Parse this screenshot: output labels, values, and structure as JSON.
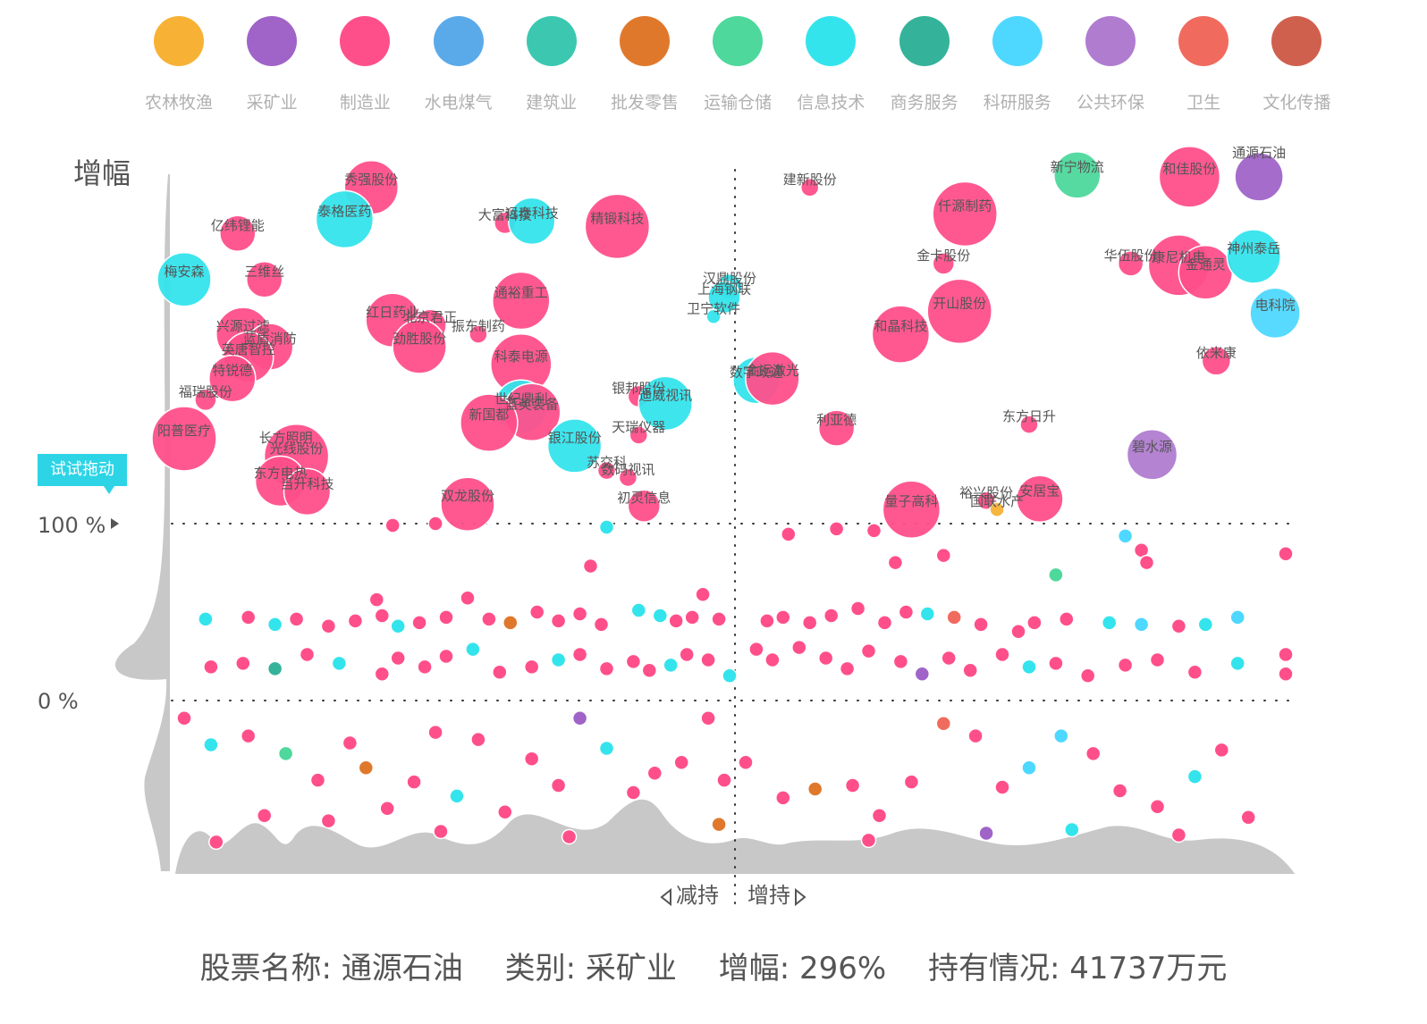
{
  "legend": {
    "items": [
      {
        "label": "农林牧渔",
        "color": "#f7b236"
      },
      {
        "label": "采矿业",
        "color": "#a064c8"
      },
      {
        "label": "制造业",
        "color": "#ff4f8b"
      },
      {
        "label": "水电煤气",
        "color": "#5aaaea"
      },
      {
        "label": "建筑业",
        "color": "#3cc8b0"
      },
      {
        "label": "批发零售",
        "color": "#e0782c"
      },
      {
        "label": "运输仓储",
        "color": "#4ed89c"
      },
      {
        "label": "信息技术",
        "color": "#34e4ec"
      },
      {
        "label": "商务服务",
        "color": "#35b39a"
      },
      {
        "label": "科研服务",
        "color": "#4fd8ff"
      },
      {
        "label": "公共环保",
        "color": "#b07cd0"
      },
      {
        "label": "卫生",
        "color": "#f06b5e"
      },
      {
        "label": "文化传播",
        "color": "#d0604e"
      }
    ]
  },
  "axis": {
    "y_title": "增幅",
    "y_ticks": [
      "100 %",
      "0 %"
    ],
    "x_left_label": "减持",
    "x_right_label": "增持",
    "drag_hint": "试试拖动"
  },
  "info_bar": {
    "name": "股票名称: 通源石油",
    "category": "类别: 采矿业",
    "growth": "增幅: 296%",
    "holding": "持有情况: 41737万元"
  },
  "chart_data": {
    "type": "scatter",
    "x_meaning": "持有情况变化 (减持 ← → 增持)",
    "y_meaning": "增幅",
    "y_ticks": [
      100,
      0
    ],
    "x_split": 0,
    "labeled_points": [
      {
        "name": "通源石油",
        "category": "采矿业",
        "x": 0.98,
        "y": 296,
        "size": 27,
        "highlight": true
      },
      {
        "name": "秀强股份",
        "category": "制造业",
        "x": -0.68,
        "y": 290,
        "size": 30
      },
      {
        "name": "泰格医药",
        "category": "信息技术",
        "x": -0.73,
        "y": 272,
        "size": 32
      },
      {
        "name": "亿纬锂能",
        "category": "制造业",
        "x": -0.93,
        "y": 264,
        "size": 20
      },
      {
        "name": "大富科技",
        "category": "制造业",
        "x": -0.43,
        "y": 270,
        "size": 12
      },
      {
        "name": "远泰科技",
        "category": "信息技术",
        "x": -0.38,
        "y": 271,
        "size": 26
      },
      {
        "name": "精锻科技",
        "category": "制造业",
        "x": -0.22,
        "y": 268,
        "size": 36
      },
      {
        "name": "建新股份",
        "category": "制造业",
        "x": 0.14,
        "y": 290,
        "size": 10
      },
      {
        "name": "新宁物流",
        "category": "运输仓储",
        "x": 0.64,
        "y": 297,
        "size": 26
      },
      {
        "name": "和佳股份",
        "category": "制造业",
        "x": 0.85,
        "y": 296,
        "size": 34
      },
      {
        "name": "仟源制药",
        "category": "制造业",
        "x": 0.43,
        "y": 275,
        "size": 36
      },
      {
        "name": "梅安森",
        "category": "信息技术",
        "x": -1.03,
        "y": 238,
        "size": 30
      },
      {
        "name": "三维丝",
        "category": "制造业",
        "x": -0.88,
        "y": 238,
        "size": 20
      },
      {
        "name": "汉鼎股份",
        "category": "信息技术",
        "x": -0.01,
        "y": 234,
        "size": 14
      },
      {
        "name": "上海钢联",
        "category": "信息技术",
        "x": -0.02,
        "y": 228,
        "size": 18
      },
      {
        "name": "卫宁软件",
        "category": "信息技术",
        "x": -0.04,
        "y": 217,
        "size": 8
      },
      {
        "name": "金卡股份",
        "category": "制造业",
        "x": 0.39,
        "y": 247,
        "size": 12
      },
      {
        "name": "华伍股份",
        "category": "制造业",
        "x": 0.74,
        "y": 247,
        "size": 14
      },
      {
        "name": "康尼机电",
        "category": "制造业",
        "x": 0.83,
        "y": 246,
        "size": 34
      },
      {
        "name": "金通灵",
        "category": "制造业",
        "x": 0.88,
        "y": 242,
        "size": 30
      },
      {
        "name": "神州泰岳",
        "category": "信息技术",
        "x": 0.97,
        "y": 251,
        "size": 30
      },
      {
        "name": "通裕重工",
        "category": "制造业",
        "x": -0.4,
        "y": 226,
        "size": 32
      },
      {
        "name": "开山股份",
        "category": "制造业",
        "x": 0.42,
        "y": 220,
        "size": 36
      },
      {
        "name": "电科院",
        "category": "科研服务",
        "x": 1.01,
        "y": 219,
        "size": 28
      },
      {
        "name": "红日药业",
        "category": "制造业",
        "x": -0.64,
        "y": 215,
        "size": 30
      },
      {
        "name": "北京君正",
        "category": "制造业",
        "x": -0.57,
        "y": 212,
        "size": 18
      },
      {
        "name": "劲胜股份",
        "category": "制造业",
        "x": -0.59,
        "y": 200,
        "size": 30
      },
      {
        "name": "振东制药",
        "category": "制造业",
        "x": -0.48,
        "y": 207,
        "size": 10
      },
      {
        "name": "兴源过滤",
        "category": "制造业",
        "x": -0.92,
        "y": 207,
        "size": 30
      },
      {
        "name": "蓝盾消防",
        "category": "制造业",
        "x": -0.87,
        "y": 200,
        "size": 26
      },
      {
        "name": "英唐智控",
        "category": "制造业",
        "x": -0.91,
        "y": 194,
        "size": 28
      },
      {
        "name": "和晶科技",
        "category": "制造业",
        "x": 0.31,
        "y": 207,
        "size": 32
      },
      {
        "name": "科泰电源",
        "category": "制造业",
        "x": -0.4,
        "y": 190,
        "size": 34
      },
      {
        "name": "依米康",
        "category": "制造业",
        "x": 0.9,
        "y": 192,
        "size": 16
      },
      {
        "name": "特锐德",
        "category": "制造业",
        "x": -0.94,
        "y": 182,
        "size": 26
      },
      {
        "name": "数字政通",
        "category": "信息技术",
        "x": 0.04,
        "y": 181,
        "size": 26
      },
      {
        "name": "金运激光",
        "category": "制造业",
        "x": 0.07,
        "y": 182,
        "size": 30
      },
      {
        "name": "银邦股份",
        "category": "制造业",
        "x": -0.18,
        "y": 172,
        "size": 12
      },
      {
        "name": "迪威视讯",
        "category": "信息技术",
        "x": -0.13,
        "y": 168,
        "size": 30
      },
      {
        "name": "世纪鼎利",
        "category": "信息技术",
        "x": -0.4,
        "y": 166,
        "size": 30
      },
      {
        "name": "蓝英装备",
        "category": "制造业",
        "x": -0.38,
        "y": 163,
        "size": 32
      },
      {
        "name": "福瑞股份",
        "category": "制造业",
        "x": -0.99,
        "y": 170,
        "size": 12
      },
      {
        "name": "新国都",
        "category": "制造业",
        "x": -0.46,
        "y": 157,
        "size": 32
      },
      {
        "name": "银江股份",
        "category": "信息技术",
        "x": -0.3,
        "y": 144,
        "size": 30
      },
      {
        "name": "天瑞仪器",
        "category": "制造业",
        "x": -0.18,
        "y": 150,
        "size": 10
      },
      {
        "name": "利亚德",
        "category": "制造业",
        "x": 0.19,
        "y": 154,
        "size": 20
      },
      {
        "name": "东方日升",
        "category": "制造业",
        "x": 0.55,
        "y": 156,
        "size": 10
      },
      {
        "name": "阳普医疗",
        "category": "制造业",
        "x": -1.03,
        "y": 148,
        "size": 36
      },
      {
        "name": "长方照明",
        "category": "制造业",
        "x": -0.84,
        "y": 144,
        "size": 12
      },
      {
        "name": "光线股份",
        "category": "制造业",
        "x": -0.82,
        "y": 138,
        "size": 36
      },
      {
        "name": "碧水源",
        "category": "公共环保",
        "x": 0.78,
        "y": 139,
        "size": 28
      },
      {
        "name": "苏交科",
        "category": "制造业",
        "x": -0.24,
        "y": 130,
        "size": 10
      },
      {
        "name": "数码视讯",
        "category": "制造业",
        "x": -0.2,
        "y": 126,
        "size": 10
      },
      {
        "name": "东方电热",
        "category": "制造业",
        "x": -0.85,
        "y": 124,
        "size": 28
      },
      {
        "name": "当升科技",
        "category": "制造业",
        "x": -0.8,
        "y": 118,
        "size": 26
      },
      {
        "name": "双龙股份",
        "category": "制造业",
        "x": -0.5,
        "y": 111,
        "size": 30
      },
      {
        "name": "初灵信息",
        "category": "制造业",
        "x": -0.17,
        "y": 110,
        "size": 18
      },
      {
        "name": "量子高科",
        "category": "制造业",
        "x": 0.33,
        "y": 108,
        "size": 32
      },
      {
        "name": "裕兴股份",
        "category": "制造业",
        "x": 0.47,
        "y": 113,
        "size": 10
      },
      {
        "name": "国联水产",
        "category": "农林牧渔",
        "x": 0.49,
        "y": 108,
        "size": 8
      },
      {
        "name": "安居宝",
        "category": "制造业",
        "x": 0.57,
        "y": 114,
        "size": 26
      }
    ],
    "small_points": [
      [
        -0.64,
        99,
        2
      ],
      [
        -0.56,
        100,
        2
      ],
      [
        -0.24,
        98,
        7
      ],
      [
        -0.27,
        76,
        2
      ],
      [
        0.1,
        94,
        2
      ],
      [
        0.19,
        97,
        2
      ],
      [
        0.26,
        96,
        2
      ],
      [
        0.3,
        78,
        2
      ],
      [
        0.39,
        82,
        2
      ],
      [
        0.6,
        71,
        6
      ],
      [
        0.73,
        93,
        9
      ],
      [
        0.76,
        85,
        2
      ],
      [
        0.77,
        78,
        2
      ],
      [
        1.03,
        83,
        2
      ],
      [
        -0.99,
        46,
        7
      ],
      [
        -0.91,
        47,
        2
      ],
      [
        -0.86,
        43,
        7
      ],
      [
        -0.82,
        46,
        2
      ],
      [
        -0.76,
        42,
        2
      ],
      [
        -0.71,
        45,
        2
      ],
      [
        -0.67,
        57,
        2
      ],
      [
        -0.66,
        48,
        2
      ],
      [
        -0.63,
        42,
        7
      ],
      [
        -0.59,
        44,
        2
      ],
      [
        -0.54,
        47,
        2
      ],
      [
        -0.5,
        58,
        2
      ],
      [
        -0.46,
        46,
        2
      ],
      [
        -0.42,
        44,
        5
      ],
      [
        -0.37,
        50,
        2
      ],
      [
        -0.33,
        45,
        2
      ],
      [
        -0.29,
        49,
        2
      ],
      [
        -0.25,
        43,
        2
      ],
      [
        -0.18,
        51,
        7
      ],
      [
        -0.14,
        48,
        7
      ],
      [
        -0.11,
        45,
        2
      ],
      [
        -0.06,
        60,
        2
      ],
      [
        -0.08,
        47,
        2
      ],
      [
        -0.03,
        46,
        2
      ],
      [
        0.06,
        45,
        2
      ],
      [
        0.09,
        47,
        2
      ],
      [
        0.14,
        44,
        2
      ],
      [
        0.18,
        48,
        2
      ],
      [
        0.23,
        52,
        2
      ],
      [
        0.28,
        44,
        2
      ],
      [
        0.32,
        50,
        2
      ],
      [
        0.36,
        49,
        7
      ],
      [
        0.41,
        47,
        11
      ],
      [
        0.46,
        43,
        2
      ],
      [
        0.53,
        39,
        2
      ],
      [
        0.56,
        44,
        2
      ],
      [
        0.62,
        46,
        2
      ],
      [
        0.7,
        44,
        7
      ],
      [
        0.76,
        43,
        9
      ],
      [
        0.83,
        42,
        2
      ],
      [
        0.88,
        43,
        7
      ],
      [
        0.94,
        47,
        9
      ],
      [
        1.03,
        26,
        2
      ],
      [
        -0.98,
        19,
        2
      ],
      [
        -0.92,
        21,
        2
      ],
      [
        -0.86,
        18,
        8
      ],
      [
        -0.8,
        26,
        2
      ],
      [
        -0.74,
        21,
        7
      ],
      [
        -0.66,
        15,
        2
      ],
      [
        -0.63,
        24,
        2
      ],
      [
        -0.58,
        19,
        2
      ],
      [
        -0.54,
        25,
        2
      ],
      [
        -0.49,
        29,
        7
      ],
      [
        -0.44,
        16,
        2
      ],
      [
        -0.38,
        19,
        2
      ],
      [
        -0.33,
        23,
        7
      ],
      [
        -0.29,
        26,
        2
      ],
      [
        -0.24,
        18,
        2
      ],
      [
        -0.19,
        22,
        2
      ],
      [
        -0.16,
        17,
        2
      ],
      [
        -0.12,
        20,
        7
      ],
      [
        -0.09,
        26,
        2
      ],
      [
        -0.05,
        23,
        2
      ],
      [
        -0.01,
        14,
        7
      ],
      [
        0.04,
        29,
        2
      ],
      [
        0.07,
        23,
        2
      ],
      [
        0.12,
        30,
        2
      ],
      [
        0.17,
        24,
        2
      ],
      [
        0.21,
        18,
        2
      ],
      [
        0.25,
        28,
        2
      ],
      [
        0.31,
        22,
        2
      ],
      [
        0.35,
        15,
        1
      ],
      [
        0.4,
        24,
        2
      ],
      [
        0.44,
        17,
        2
      ],
      [
        0.5,
        26,
        2
      ],
      [
        0.55,
        19,
        7
      ],
      [
        0.6,
        21,
        2
      ],
      [
        0.66,
        14,
        2
      ],
      [
        0.73,
        20,
        2
      ],
      [
        0.79,
        23,
        2
      ],
      [
        0.86,
        16,
        2
      ],
      [
        0.94,
        21,
        7
      ],
      [
        1.03,
        15,
        2
      ],
      [
        -1.03,
        -10,
        2
      ],
      [
        -0.98,
        -25,
        7
      ],
      [
        -0.91,
        -20,
        2
      ],
      [
        -0.84,
        -30,
        6
      ],
      [
        -0.78,
        -45,
        2
      ],
      [
        -0.72,
        -24,
        2
      ],
      [
        -0.69,
        -38,
        5
      ],
      [
        -0.65,
        -61,
        2
      ],
      [
        -0.6,
        -46,
        2
      ],
      [
        -0.56,
        -18,
        2
      ],
      [
        -0.52,
        -54,
        7
      ],
      [
        -0.48,
        -22,
        2
      ],
      [
        -0.43,
        -63,
        2
      ],
      [
        -0.38,
        -33,
        2
      ],
      [
        -0.33,
        -48,
        2
      ],
      [
        -0.29,
        -10,
        1
      ],
      [
        -0.24,
        -27,
        7
      ],
      [
        -0.19,
        -52,
        2
      ],
      [
        -0.15,
        -41,
        2
      ],
      [
        -0.1,
        -35,
        2
      ],
      [
        -0.05,
        -10,
        2
      ],
      [
        -0.02,
        -45,
        2
      ],
      [
        0.02,
        -35,
        2
      ],
      [
        0.09,
        -55,
        2
      ],
      [
        0.15,
        -50,
        5
      ],
      [
        0.22,
        -48,
        2
      ],
      [
        0.27,
        -65,
        2
      ],
      [
        0.33,
        -46,
        2
      ],
      [
        0.39,
        -13,
        11
      ],
      [
        0.45,
        -20,
        2
      ],
      [
        0.5,
        -49,
        2
      ],
      [
        0.55,
        -38,
        9
      ],
      [
        0.61,
        -20,
        9
      ],
      [
        0.67,
        -30,
        2
      ],
      [
        0.72,
        -51,
        2
      ],
      [
        0.79,
        -60,
        2
      ],
      [
        0.86,
        -43,
        7
      ],
      [
        0.91,
        -28,
        2
      ],
      [
        -0.97,
        -80,
        2
      ],
      [
        -0.88,
        -65,
        2
      ],
      [
        -0.76,
        -68,
        2
      ],
      [
        -0.55,
        -74,
        2
      ],
      [
        -0.31,
        -77,
        2
      ],
      [
        -0.03,
        -70,
        5
      ],
      [
        0.25,
        -79,
        2
      ],
      [
        0.47,
        -75,
        1
      ],
      [
        0.63,
        -73,
        7
      ],
      [
        0.83,
        -76,
        2
      ],
      [
        0.96,
        -66,
        2
      ]
    ]
  }
}
